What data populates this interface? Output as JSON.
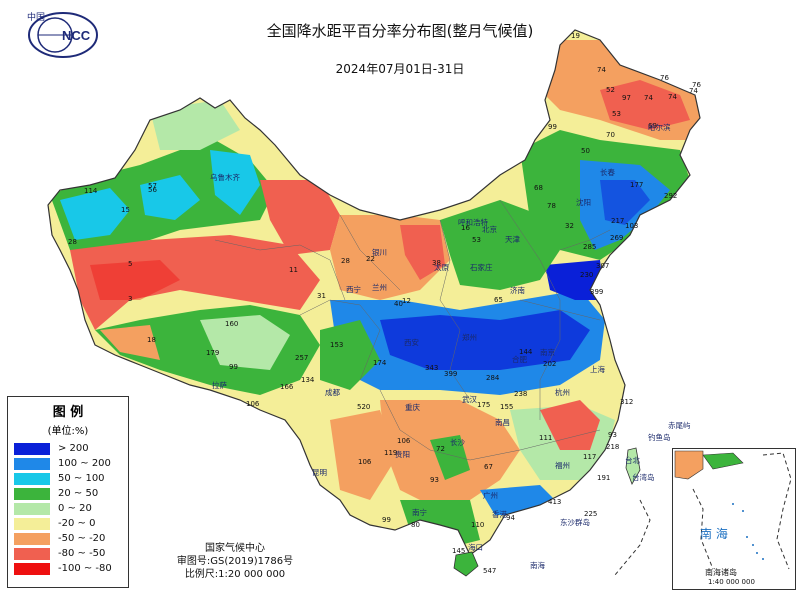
{
  "title": "全国降水距平百分率分布图(整月气候值)",
  "date_range": "2024年07月01日-31日",
  "logo": {
    "top_text": "中国",
    "text": "NCC"
  },
  "legend": {
    "title": "图 例",
    "unit": "(单位:%)",
    "items": [
      {
        "label": "> 200",
        "color": "#0a20d8"
      },
      {
        "label": "100 ~ 200",
        "color": "#1f88e8"
      },
      {
        "label": "50 ~ 100",
        "color": "#18c8e8"
      },
      {
        "label": "20 ~ 50",
        "color": "#3cb43c"
      },
      {
        "label": "0 ~ 20",
        "color": "#b4e8a8"
      },
      {
        "label": "-20 ~ 0",
        "color": "#f4ee98"
      },
      {
        "label": "-50 ~ -20",
        "color": "#f4a060"
      },
      {
        "label": "-80 ~ -50",
        "color": "#f06050"
      },
      {
        "label": "-100 ~ -80",
        "color": "#ee1010"
      }
    ]
  },
  "credits": {
    "org": "国家气候中心",
    "map_number": "审图号:GS(2019)1786号",
    "scale": "比例尺:1:20 000 000"
  },
  "inset": {
    "sea_label": "南 海",
    "islands_label": "南海诸岛",
    "scale": "1:40 000 000"
  },
  "place_labels": [
    "北京",
    "天津",
    "西宁",
    "兰州",
    "成都",
    "重庆",
    "贵阳",
    "昆明",
    "南宁",
    "广州",
    "香港",
    "海口",
    "长沙",
    "南昌",
    "福州",
    "台北",
    "杭州",
    "上海",
    "南京",
    "合肥",
    "武汉",
    "郑州",
    "济南",
    "石家庄",
    "太原",
    "西安",
    "银川",
    "呼和浩特",
    "沈阳",
    "长春",
    "哈尔滨",
    "乌鲁木齐",
    "拉萨",
    "台湾岛",
    "钓鱼岛",
    "赤尾屿",
    "东沙群岛",
    "南海"
  ],
  "station_values": [
    [
      "19",
      571,
      38
    ],
    [
      "74",
      597,
      72
    ],
    [
      "52",
      606,
      92
    ],
    [
      "97",
      622,
      100
    ],
    [
      "74",
      644,
      100
    ],
    [
      "76",
      660,
      80
    ],
    [
      "74",
      668,
      99
    ],
    [
      "69",
      648,
      128
    ],
    [
      "53",
      612,
      116
    ],
    [
      "99",
      548,
      129
    ],
    [
      "50",
      581,
      153
    ],
    [
      "70",
      606,
      137
    ],
    [
      "74",
      689,
      93
    ],
    [
      "76",
      692,
      87
    ],
    [
      "68",
      534,
      190
    ],
    [
      "78",
      547,
      208
    ],
    [
      "32",
      565,
      228
    ],
    [
      "292",
      664,
      198
    ],
    [
      "217",
      611,
      223
    ],
    [
      "177",
      630,
      187
    ],
    [
      "269",
      610,
      240
    ],
    [
      "285",
      583,
      249
    ],
    [
      "103",
      625,
      228
    ],
    [
      "57",
      148,
      188
    ],
    [
      "56",
      148,
      192
    ],
    [
      "28",
      68,
      244
    ],
    [
      "114",
      84,
      193
    ],
    [
      "15",
      121,
      212
    ],
    [
      "18",
      147,
      342
    ],
    [
      "160",
      225,
      326
    ],
    [
      "179",
      206,
      355
    ],
    [
      "99",
      229,
      369
    ],
    [
      "106",
      246,
      406
    ],
    [
      "166",
      280,
      389
    ],
    [
      "153",
      330,
      347
    ],
    [
      "257",
      295,
      360
    ],
    [
      "174",
      373,
      365
    ],
    [
      "134",
      301,
      382
    ],
    [
      "520",
      357,
      409
    ],
    [
      "343",
      425,
      370
    ],
    [
      "399",
      444,
      376
    ],
    [
      "238",
      514,
      396
    ],
    [
      "399",
      590,
      294
    ],
    [
      "307",
      596,
      268
    ],
    [
      "230",
      580,
      277
    ],
    [
      "144",
      519,
      354
    ],
    [
      "202",
      543,
      366
    ],
    [
      "284",
      486,
      380
    ],
    [
      "3",
      128,
      301
    ],
    [
      "5",
      128,
      266
    ],
    [
      "11",
      289,
      272
    ],
    [
      "31",
      317,
      298
    ],
    [
      "40",
      394,
      306
    ],
    [
      "12",
      402,
      303
    ],
    [
      "22",
      366,
      261
    ],
    [
      "28",
      341,
      263
    ],
    [
      "38",
      432,
      265
    ],
    [
      "16",
      461,
      230
    ],
    [
      "53",
      472,
      242
    ],
    [
      "65",
      494,
      302
    ],
    [
      "67",
      484,
      469
    ],
    [
      "93",
      430,
      482
    ],
    [
      "110",
      471,
      527
    ],
    [
      "145",
      452,
      553
    ],
    [
      "547",
      483,
      573
    ],
    [
      "94",
      506,
      520
    ],
    [
      "413",
      548,
      504
    ],
    [
      "225",
      584,
      516
    ],
    [
      "117",
      583,
      459
    ],
    [
      "191",
      597,
      480
    ],
    [
      "218",
      606,
      449
    ],
    [
      "93",
      608,
      437
    ],
    [
      "312",
      620,
      404
    ],
    [
      "175",
      477,
      407
    ],
    [
      "155",
      500,
      409
    ],
    [
      "111",
      539,
      440
    ],
    [
      "72",
      436,
      451
    ],
    [
      "106",
      397,
      443
    ],
    [
      "106",
      358,
      464
    ],
    [
      "119",
      384,
      455
    ],
    [
      "99",
      382,
      522
    ],
    [
      "80",
      411,
      527
    ]
  ]
}
